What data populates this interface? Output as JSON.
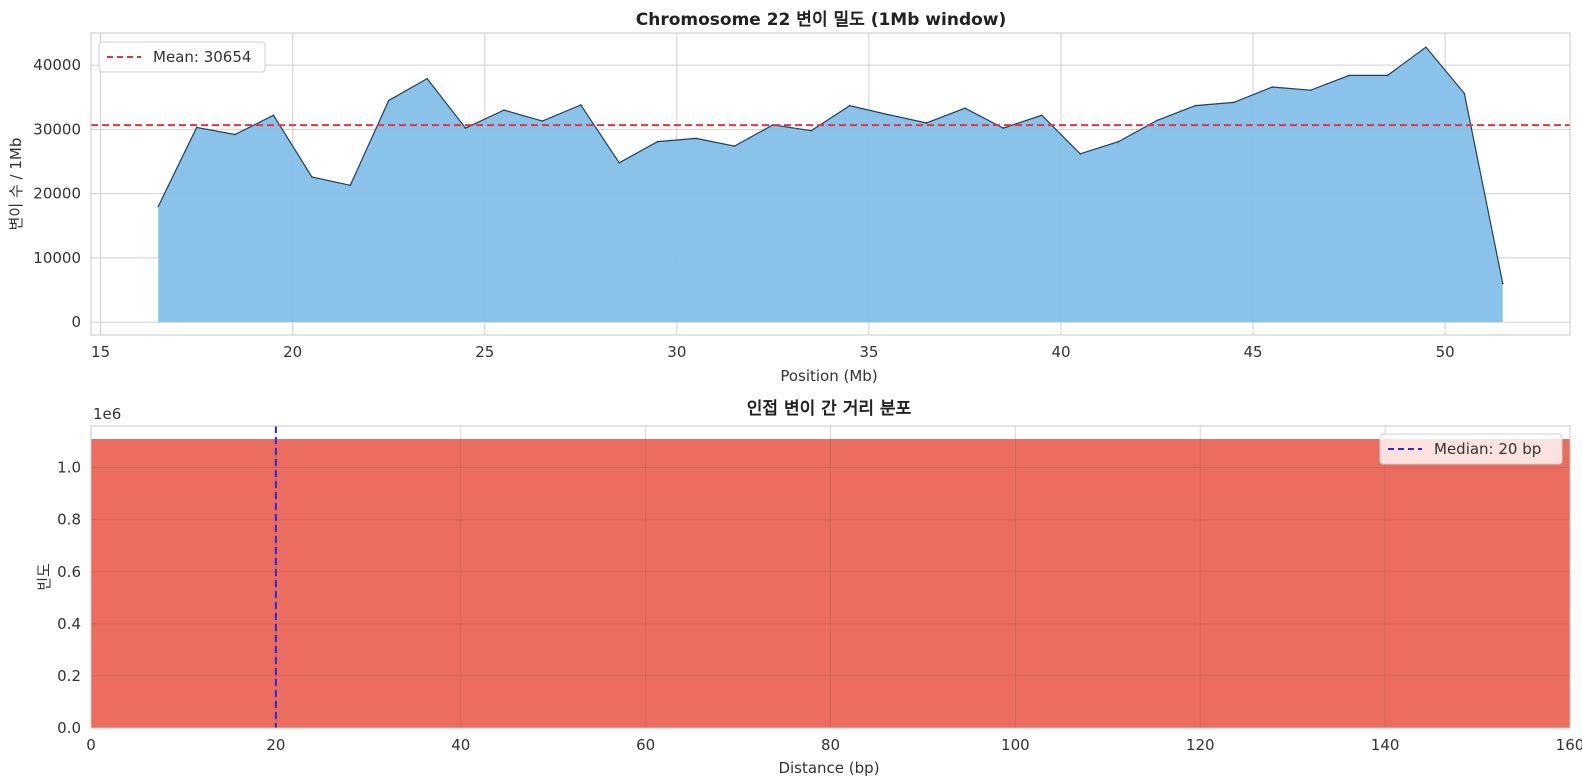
{
  "chart_data": [
    {
      "type": "area",
      "title": "Chromosome 22 변이 밀도 (1Mb window)",
      "xlabel": "Position (Mb)",
      "ylabel": "변이 수 / 1Mb",
      "xlim": [
        14.75,
        53.25
      ],
      "ylim": [
        -2000,
        45000
      ],
      "xticks": [
        15,
        20,
        25,
        30,
        35,
        40,
        45,
        50
      ],
      "yticks": [
        0,
        10000,
        20000,
        30000,
        40000
      ],
      "grid": true,
      "fill_color": "#85bfe8",
      "line_color": "#1f4060",
      "x": [
        16.5,
        17.5,
        18.5,
        19.5,
        20.5,
        21.5,
        22.5,
        23.5,
        24.5,
        25.5,
        26.5,
        27.5,
        28.5,
        29.5,
        30.5,
        31.5,
        32.5,
        33.5,
        34.5,
        35.5,
        36.5,
        37.5,
        38.5,
        39.5,
        40.5,
        41.5,
        42.5,
        43.5,
        44.5,
        45.5,
        46.5,
        47.5,
        48.5,
        49.5,
        50.5,
        51.5
      ],
      "values": [
        18000,
        30300,
        29200,
        32200,
        22600,
        21300,
        34500,
        37900,
        30200,
        33000,
        31300,
        33800,
        24800,
        28100,
        28600,
        27400,
        30700,
        29800,
        33700,
        32300,
        31000,
        33300,
        30200,
        32200,
        26200,
        28100,
        31400,
        33700,
        34200,
        36600,
        36100,
        38400,
        38400,
        42800,
        35600,
        6000
      ],
      "reference_line": {
        "label": "Mean: 30654",
        "value": 30654,
        "color": "#e8333a",
        "style": "dashed"
      },
      "legend": {
        "location": "upper-left",
        "entries": [
          "Mean: 30654"
        ]
      }
    },
    {
      "type": "bar",
      "title": "인접 변이 간 거리 분포",
      "xlabel": "Distance (bp)",
      "ylabel": "빈도",
      "scale_label": "1e6",
      "xlim": [
        0,
        160
      ],
      "ylim": [
        0,
        1.16
      ],
      "xticks": [
        0,
        20,
        40,
        60,
        80,
        100,
        120,
        140,
        160
      ],
      "yticks": [
        0.0,
        0.2,
        0.4,
        0.6,
        0.8,
        1.0
      ],
      "ytick_labels": [
        "0.0",
        "0.2",
        "0.4",
        "0.6",
        "0.8",
        "1.0"
      ],
      "grid": true,
      "bar_color": "#eb6d60",
      "bins": [
        {
          "x0": 0,
          "x1": 160,
          "value": 1.11
        }
      ],
      "reference_line": {
        "label": "Median: 20 bp",
        "value": 20,
        "color": "#2a2ad6",
        "style": "dashed"
      },
      "legend": {
        "location": "upper-right",
        "entries": [
          "Median: 20 bp"
        ]
      }
    }
  ]
}
